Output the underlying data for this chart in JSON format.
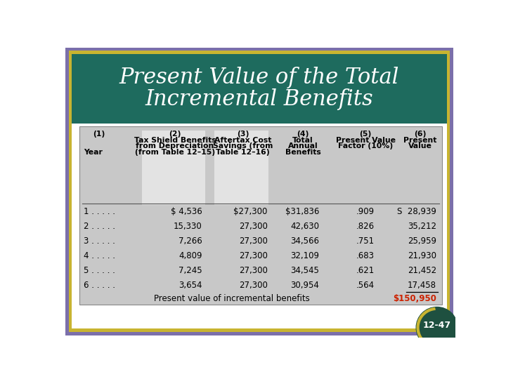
{
  "title_line1": "Present Value of the Total",
  "title_line2": "Incremental Benefits",
  "title_bg_color": "#1e6b5e",
  "title_text_color": "#ffffff",
  "border_color_outer": "#7b6faa",
  "border_color_inner": "#c8b430",
  "table_bg_color": "#c8c8c8",
  "slide_bg_color": "#ffffff",
  "col1_header": "(1)",
  "col2_header_lines": [
    "(2)",
    "Tax Shield Benefits",
    "from Depreciation",
    "(from Table 12–15)"
  ],
  "col3_header_lines": [
    "(3)",
    "Aftertax Cost",
    "Savings (from",
    "Table 12–16)"
  ],
  "col4_header_lines": [
    "(4)",
    "Total",
    "Annual",
    "Benefits"
  ],
  "col5_header_lines": [
    "(5)",
    "Present Value",
    "Factor (10%)"
  ],
  "col6_header_lines": [
    "(6)",
    "Present",
    "Value"
  ],
  "year_label": "Year",
  "rows": [
    [
      "1 . . . . .",
      "$ 4,536",
      "$27,300",
      "$31,836",
      ".909",
      "S  28,939"
    ],
    [
      "2 . . . . .",
      "15,330",
      "27,300",
      "42,630",
      ".826",
      "35,212"
    ],
    [
      "3 . . . . .",
      "7,266",
      "27,300",
      "34,566",
      ".751",
      "25,959"
    ],
    [
      "4 . . . . .",
      "4,809",
      "27,300",
      "32,109",
      ".683",
      "21,930"
    ],
    [
      "5 . . . . .",
      "7,245",
      "27,300",
      "34,545",
      ".621",
      "21,452"
    ],
    [
      "6 . . . . .",
      "3,654",
      "27,300",
      "30,954",
      ".564",
      "17,458"
    ]
  ],
  "footer_label": "Present value of incremental benefits",
  "footer_value": "$150,950",
  "footer_value_color": "#cc2200",
  "badge_bg_color": "#1e5040",
  "badge_text": "12-47",
  "badge_text_color": "#ffffff",
  "badge_highlight_color": "#c8b430"
}
